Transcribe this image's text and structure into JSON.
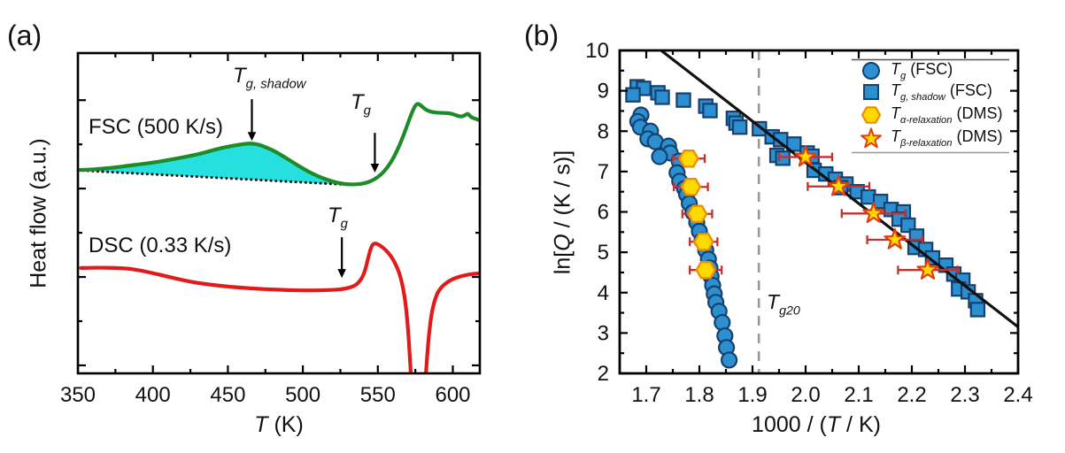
{
  "figure": {
    "panel_a_label": "(a)",
    "panel_b_label": "(b)"
  },
  "colors": {
    "blue_marker": "#2b8fd0",
    "blue_edge": "#16406e",
    "yellow_fill": "#ffd900",
    "hexagon_edge": "#f08c00",
    "star_edge": "#e03c10",
    "error_bar": "#c23030",
    "fit_line": "#111111",
    "dashed_line": "#999999",
    "fsc_green": "#1d8c28",
    "shadow_cyan": "#26e0e0",
    "dsc_red": "#e11b1b",
    "text": "#111111"
  },
  "panel_a": {
    "ylabel_segments": [
      {
        "t": "Heat flow (a.u.)"
      }
    ],
    "xlabel_segments": [
      {
        "t": "T",
        "i": true
      },
      {
        "t": " (K)"
      }
    ],
    "curve_labels": {
      "fsc": "FSC (500 K/s)",
      "dsc": "DSC (0.33 K/s)"
    },
    "annotations": {
      "tg_shadow_segments": [
        {
          "t": "T",
          "i": true
        },
        {
          "t": "g, shadow",
          "sub": true,
          "i": true
        }
      ],
      "tg_fsc_segments": [
        {
          "t": "T",
          "i": true
        },
        {
          "t": "g",
          "sub": true,
          "i": true
        }
      ],
      "tg_dsc_segments": [
        {
          "t": "T",
          "i": true
        },
        {
          "t": "g",
          "sub": true,
          "i": true
        }
      ]
    }
  },
  "panel_b": {
    "ylabel_segments": [
      {
        "t": "ln["
      },
      {
        "t": "Q",
        "i": true
      },
      {
        "t": " / (K / s)]"
      }
    ],
    "xlabel_segments": [
      {
        "t": "1000 / ("
      },
      {
        "t": "T",
        "i": true
      },
      {
        "t": " / K)"
      }
    ],
    "tg20_segments": [
      {
        "t": "T",
        "i": true
      },
      {
        "t": "g20",
        "sub": true,
        "i": true
      }
    ],
    "legend": {
      "entries": [
        {
          "marker": "circle",
          "label_segments": [
            {
              "t": "T",
              "i": true
            },
            {
              "t": "g",
              "sub": true,
              "i": true
            },
            {
              "t": " (FSC)"
            }
          ]
        },
        {
          "marker": "square",
          "label_segments": [
            {
              "t": "T",
              "i": true
            },
            {
              "t": "g, shadow",
              "sub": true,
              "i": true
            },
            {
              "t": " (FSC)"
            }
          ]
        },
        {
          "marker": "hexagon",
          "label_segments": [
            {
              "t": "T",
              "i": true
            },
            {
              "t": "α",
              "sub": true,
              "i": true
            },
            {
              "t": "-relaxation",
              "sub": true,
              "i": true
            },
            {
              "t": " (DMS)"
            }
          ]
        },
        {
          "marker": "star",
          "label_segments": [
            {
              "t": "T",
              "i": true
            },
            {
              "t": "β",
              "sub": true,
              "i": true
            },
            {
              "t": "-relaxation",
              "sub": true,
              "i": true
            },
            {
              "t": " (DMS)"
            }
          ]
        }
      ]
    }
  },
  "chart_data": [
    {
      "type": "line",
      "panel": "a",
      "xlabel": "T (K)",
      "ylabel": "Heat flow (a.u.)",
      "xlim": [
        350,
        618
      ],
      "x_ticks": [
        350,
        400,
        450,
        500,
        550,
        600
      ],
      "x_tick_labels": [
        "350",
        "400",
        "450",
        "500",
        "550",
        "600"
      ],
      "x_minor_ticks": [
        375,
        425,
        475,
        525,
        575
      ],
      "y_units": "arbitrary (normalized 0-1 of plot height)",
      "series": [
        {
          "name": "FSC (500 K/s)",
          "points": [
            [
              350,
              0.635
            ],
            [
              358,
              0.636
            ],
            [
              366,
              0.639
            ],
            [
              375,
              0.643
            ],
            [
              383,
              0.648
            ],
            [
              392,
              0.653
            ],
            [
              400,
              0.658
            ],
            [
              408,
              0.664
            ],
            [
              416,
              0.671
            ],
            [
              424,
              0.678
            ],
            [
              432,
              0.686
            ],
            [
              440,
              0.697
            ],
            [
              448,
              0.706
            ],
            [
              456,
              0.713
            ],
            [
              462,
              0.717
            ],
            [
              466,
              0.718
            ],
            [
              471,
              0.714
            ],
            [
              477,
              0.703
            ],
            [
              483,
              0.689
            ],
            [
              489,
              0.672
            ],
            [
              495,
              0.654
            ],
            [
              501,
              0.637
            ],
            [
              507,
              0.622
            ],
            [
              513,
              0.61
            ],
            [
              519,
              0.6
            ],
            [
              525,
              0.593
            ],
            [
              530,
              0.59
            ],
            [
              535,
              0.59
            ],
            [
              540,
              0.592
            ],
            [
              545,
              0.599
            ],
            [
              550,
              0.612
            ],
            [
              555,
              0.634
            ],
            [
              560,
              0.668
            ],
            [
              565,
              0.717
            ],
            [
              569,
              0.767
            ],
            [
              572,
              0.806
            ],
            [
              575,
              0.838
            ],
            [
              577,
              0.843
            ],
            [
              580,
              0.831
            ],
            [
              583,
              0.82
            ],
            [
              587,
              0.815
            ],
            [
              592,
              0.813
            ],
            [
              597,
              0.813
            ],
            [
              601,
              0.808
            ],
            [
              605,
              0.801
            ],
            [
              608,
              0.805
            ],
            [
              610,
              0.812
            ],
            [
              612,
              0.8
            ],
            [
              615,
              0.795
            ],
            [
              618,
              0.79
            ]
          ]
        },
        {
          "name": "DSC (0.33 K/s)",
          "points": [
            [
              352,
              0.329
            ],
            [
              360,
              0.33
            ],
            [
              368,
              0.33
            ],
            [
              376,
              0.329
            ],
            [
              384,
              0.327
            ],
            [
              392,
              0.321
            ],
            [
              400,
              0.313
            ],
            [
              410,
              0.302
            ],
            [
              420,
              0.291
            ],
            [
              430,
              0.282
            ],
            [
              440,
              0.276
            ],
            [
              450,
              0.271
            ],
            [
              460,
              0.267
            ],
            [
              470,
              0.264
            ],
            [
              480,
              0.262
            ],
            [
              490,
              0.26
            ],
            [
              500,
              0.259
            ],
            [
              508,
              0.259
            ],
            [
              516,
              0.26
            ],
            [
              522,
              0.261
            ],
            [
              528,
              0.264
            ],
            [
              533,
              0.27
            ],
            [
              537,
              0.281
            ],
            [
              541,
              0.31
            ],
            [
              544,
              0.37
            ],
            [
              546,
              0.4
            ],
            [
              548,
              0.407
            ],
            [
              551,
              0.401
            ],
            [
              555,
              0.387
            ],
            [
              559,
              0.365
            ],
            [
              562,
              0.34
            ],
            [
              565,
              0.305
            ],
            [
              568,
              0.24
            ],
            [
              570,
              0.15
            ],
            [
              571.5,
              0.04
            ],
            [
              573,
              -0.08
            ],
            [
              581,
              -0.08
            ],
            [
              582.5,
              0.03
            ],
            [
              584,
              0.12
            ],
            [
              586,
              0.195
            ],
            [
              589,
              0.245
            ],
            [
              592,
              0.268
            ],
            [
              596,
              0.284
            ],
            [
              600,
              0.295
            ],
            [
              605,
              0.303
            ],
            [
              610,
              0.308
            ],
            [
              614,
              0.311
            ],
            [
              618,
              0.312
            ]
          ]
        },
        {
          "name": "shadow baseline (dotted tangent)",
          "style": "dotted",
          "points": [
            [
              350,
              0.634
            ],
            [
              530,
              0.589
            ]
          ]
        }
      ],
      "shadow_fill": {
        "between": "FSC curve and dotted baseline",
        "x_range": [
          350,
          530
        ]
      },
      "arrows": [
        {
          "name": "tg-shadow-arrow",
          "x": 466,
          "y_from": 0.856,
          "y_to": 0.726
        },
        {
          "name": "tg-fsc-arrow",
          "x": 548,
          "y_from": 0.751,
          "y_to": 0.627
        },
        {
          "name": "tg-dsc-arrow",
          "x": 526,
          "y_from": 0.425,
          "y_to": 0.298
        }
      ]
    },
    {
      "type": "scatter",
      "panel": "b",
      "xlabel": "1000 / (T / K)",
      "ylabel": "ln[Q / (K / s)]",
      "xlim": [
        1.65,
        2.4
      ],
      "ylim": [
        2,
        10
      ],
      "x_ticks": [
        1.7,
        1.8,
        1.9,
        2.0,
        2.1,
        2.2,
        2.3,
        2.4
      ],
      "x_tick_labels": [
        "1.7",
        "1.8",
        "1.9",
        "2.0",
        "2.1",
        "2.2",
        "2.3",
        "2.4"
      ],
      "x_minor_ticks": [
        1.75,
        1.85,
        1.95,
        2.05,
        2.15,
        2.25,
        2.35
      ],
      "y_ticks": [
        2,
        3,
        4,
        5,
        6,
        7,
        8,
        9,
        10
      ],
      "y_tick_labels": [
        "2",
        "3",
        "4",
        "5",
        "6",
        "7",
        "8",
        "9",
        "10"
      ],
      "y_minor_ticks": [
        2.5,
        3.5,
        4.5,
        5.5,
        6.5,
        7.5,
        8.5,
        9.5
      ],
      "series": [
        {
          "name": "Tg (FSC)",
          "marker": "circle",
          "points": [
            [
              1.69,
              8.4
            ],
            [
              1.684,
              8.24
            ],
            [
              1.689,
              8.1
            ],
            [
              1.708,
              8.0
            ],
            [
              1.703,
              7.81
            ],
            [
              1.717,
              7.74
            ],
            [
              1.742,
              7.63
            ],
            [
              1.745,
              7.46
            ],
            [
              1.725,
              7.37
            ],
            [
              1.762,
              7.26
            ],
            [
              1.758,
              6.97
            ],
            [
              1.763,
              6.76
            ],
            [
              1.772,
              6.58
            ],
            [
              1.776,
              6.43
            ],
            [
              1.781,
              6.21
            ],
            [
              1.788,
              5.99
            ],
            [
              1.795,
              5.74
            ],
            [
              1.8,
              5.52
            ],
            [
              1.805,
              5.29
            ],
            [
              1.812,
              5.05
            ],
            [
              1.817,
              4.83
            ],
            [
              1.82,
              4.61
            ],
            [
              1.822,
              4.4
            ],
            [
              1.825,
              4.18
            ],
            [
              1.828,
              3.97
            ],
            [
              1.831,
              3.76
            ],
            [
              1.837,
              3.54
            ],
            [
              1.843,
              3.26
            ],
            [
              1.848,
              2.93
            ],
            [
              1.851,
              2.64
            ],
            [
              1.856,
              2.33
            ]
          ]
        },
        {
          "name": "Tg,shadow (FSC)",
          "marker": "square",
          "points": [
            [
              1.683,
              9.1
            ],
            [
              1.695,
              9.06
            ],
            [
              1.675,
              8.9
            ],
            [
              1.722,
              8.95
            ],
            [
              1.73,
              8.84
            ],
            [
              1.77,
              8.77
            ],
            [
              1.812,
              8.62
            ],
            [
              1.82,
              8.51
            ],
            [
              1.864,
              8.32
            ],
            [
              1.869,
              8.2
            ],
            [
              1.876,
              8.1
            ],
            [
              1.913,
              8.06
            ],
            [
              1.937,
              7.86
            ],
            [
              1.953,
              7.79
            ],
            [
              1.978,
              7.68
            ],
            [
              1.946,
              7.4
            ],
            [
              1.957,
              7.33
            ],
            [
              2.003,
              7.46
            ],
            [
              2.012,
              7.38
            ],
            [
              2.016,
              7.03
            ],
            [
              2.038,
              6.94
            ],
            [
              2.056,
              6.81
            ],
            [
              2.076,
              6.69
            ],
            [
              2.066,
              6.6
            ],
            [
              2.097,
              6.5
            ],
            [
              2.118,
              6.37
            ],
            [
              2.141,
              6.26
            ],
            [
              2.161,
              6.06
            ],
            [
              2.184,
              6.0
            ],
            [
              2.176,
              5.82
            ],
            [
              2.193,
              5.67
            ],
            [
              2.209,
              5.4
            ],
            [
              2.206,
              5.12
            ],
            [
              2.226,
              5.07
            ],
            [
              2.239,
              4.86
            ],
            [
              2.264,
              4.68
            ],
            [
              2.279,
              4.46
            ],
            [
              2.296,
              4.31
            ],
            [
              2.288,
              4.09
            ],
            [
              2.306,
              4.02
            ],
            [
              2.32,
              3.8
            ],
            [
              2.324,
              3.58
            ]
          ]
        },
        {
          "name": "Tα-relaxation (DMS)",
          "marker": "hexagon",
          "points": [
            [
              1.78,
              7.32
            ],
            [
              1.784,
              6.62
            ],
            [
              1.796,
              5.95
            ],
            [
              1.808,
              5.26
            ],
            [
              1.812,
              4.56
            ]
          ],
          "xerr": [
            0.03,
            0.032,
            0.028,
            0.026,
            0.03
          ]
        },
        {
          "name": "Tβ-relaxation (DMS)",
          "marker": "star",
          "points": [
            [
              2.0,
              7.36
            ],
            [
              2.062,
              6.63
            ],
            [
              2.128,
              5.96
            ],
            [
              2.168,
              5.31
            ],
            [
              2.23,
              4.56
            ]
          ],
          "xerr": [
            0.05,
            0.058,
            0.06,
            0.052,
            0.056
          ]
        }
      ],
      "fit_line": {
        "points": [
          [
            1.728,
            10.0
          ],
          [
            2.4,
            3.15
          ]
        ]
      },
      "vline": {
        "x": 1.912,
        "style": "dashed",
        "label": "Tg20"
      },
      "legend_position": "top-right"
    }
  ]
}
